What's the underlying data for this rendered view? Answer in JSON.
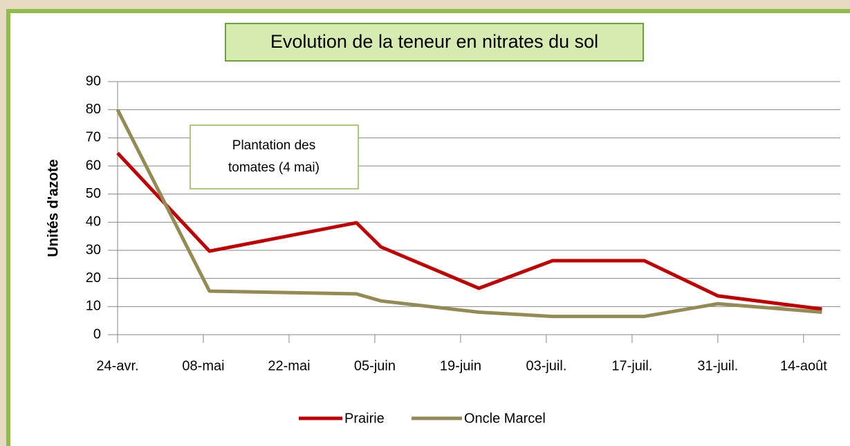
{
  "chart_data": {
    "type": "line",
    "title": "Evolution de la teneur en nitrates du sol",
    "y_label": "Unités d'azote",
    "annotation": [
      "Plantation  des",
      "tomates (4 mai)"
    ],
    "x": [
      0,
      15,
      39,
      43,
      59,
      71,
      86,
      98,
      115
    ],
    "series": [
      {
        "name": "Prairie",
        "color": "#c00000",
        "values": [
          64.6,
          29.7,
          39.8,
          31.2,
          16.5,
          26.3,
          26.3,
          13.8,
          9.1
        ]
      },
      {
        "name": "Oncle Marcel",
        "color": "#948a54",
        "values": [
          80,
          15.5,
          14.5,
          12,
          8,
          6.5,
          6.5,
          11,
          8
        ]
      }
    ],
    "xlim": [
      0,
      118
    ],
    "xticks": [
      {
        "value": 0,
        "label": "24-avr."
      },
      {
        "value": 14,
        "label": "08-mai"
      },
      {
        "value": 28,
        "label": "22-mai"
      },
      {
        "value": 42,
        "label": "05-juin"
      },
      {
        "value": 56,
        "label": "19-juin"
      },
      {
        "value": 70,
        "label": "03-juil."
      },
      {
        "value": 84,
        "label": "17-juil."
      },
      {
        "value": 98,
        "label": "31-juil."
      },
      {
        "value": 112,
        "label": "14-août"
      }
    ],
    "ylim": [
      0,
      90
    ],
    "yticks": [
      0,
      10,
      20,
      30,
      40,
      50,
      60,
      70,
      80,
      90
    ],
    "grid": true,
    "legend": "bottom"
  }
}
